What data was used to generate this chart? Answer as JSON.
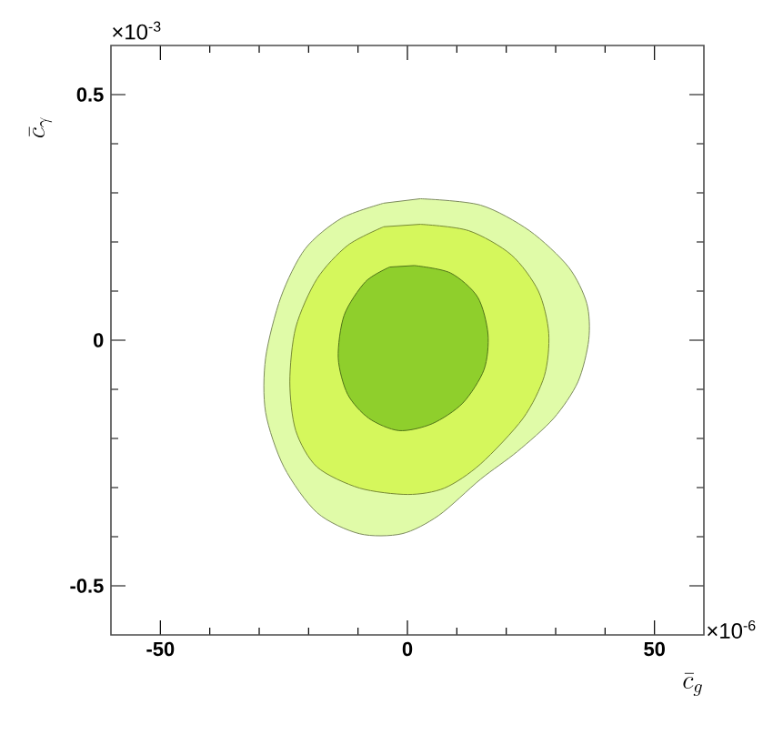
{
  "chart_data": {
    "type": "area",
    "xlabel": "\\bar{c}_{g}",
    "ylabel": "\\bar{c}_{\\gamma}",
    "annotations": [
      "×10$^{-3}$",
      "×10$^{-6}$"
    ],
    "xlim": [
      -60,
      60
    ],
    "ylim": [
      -0.6,
      0.6
    ],
    "xticks": [
      -50,
      0,
      50
    ],
    "yticks": [
      -0.5,
      0,
      0.5
    ],
    "series": [
      {
        "color": "#e0fba8",
        "x": [
          2.6,
          14.8,
          24.7,
          32.6,
          36.3,
          36.7,
          34.5,
          29.6,
          22.2,
          14.8,
          6.3,
          -1.1,
          -9.7,
          -18.3,
          -25.0,
          -28.7,
          -28.7,
          -25.6,
          -20.7,
          -13.4,
          -4.8
        ],
        "values": [
          0.288,
          0.275,
          0.223,
          0.149,
          0.075,
          0.001,
          -0.085,
          -0.159,
          -0.227,
          -0.283,
          -0.357,
          -0.394,
          -0.394,
          -0.351,
          -0.258,
          -0.147,
          -0.036,
          0.088,
          0.186,
          0.248,
          0.279
        ]
      },
      {
        "color": "#d5f75c",
        "x": [
          2.6,
          12.4,
          21.0,
          26.5,
          28.6,
          27.7,
          23.4,
          14.8,
          7.5,
          0.1,
          -9.7,
          -18.3,
          -22.6,
          -23.8,
          -22.6,
          -18.3,
          -12.1,
          -4.8
        ],
        "values": [
          0.236,
          0.223,
          0.174,
          0.1,
          0.014,
          -0.073,
          -0.159,
          -0.252,
          -0.301,
          -0.314,
          -0.301,
          -0.258,
          -0.184,
          -0.085,
          0.026,
          0.125,
          0.193,
          0.231
        ]
      },
      {
        "color": "#8fcf2c",
        "x": [
          1.4,
          8.7,
          14.2,
          16.3,
          15.5,
          11.2,
          5.0,
          -1.7,
          -7.8,
          -12.1,
          -14.0,
          -12.8,
          -8.5,
          -3.6
        ],
        "values": [
          0.152,
          0.137,
          0.088,
          0.013,
          -0.06,
          -0.128,
          -0.17,
          -0.184,
          -0.159,
          -0.11,
          -0.036,
          0.051,
          0.119,
          0.149
        ]
      }
    ]
  }
}
